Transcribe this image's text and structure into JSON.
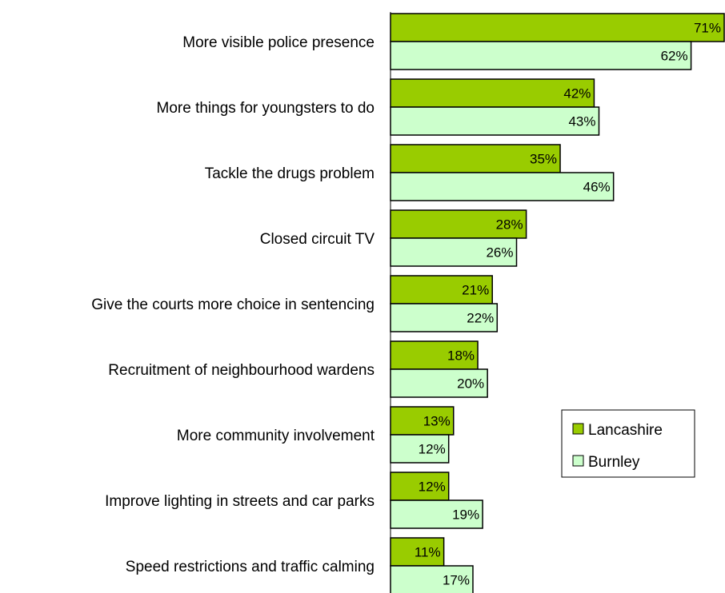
{
  "chart_data": {
    "type": "bar",
    "orientation": "horizontal",
    "categories": [
      "More visible police presence",
      "More things for youngsters to do",
      "Tackle the drugs problem",
      "Closed circuit TV",
      "Give the courts more choice in sentencing",
      "Recruitment of neighbourhood wardens",
      "More community involvement",
      "Improve lighting in streets and car parks",
      "Speed restrictions and traffic calming"
    ],
    "series": [
      {
        "name": "Lancashire",
        "values": [
          71,
          42,
          35,
          28,
          21,
          18,
          13,
          12,
          11
        ],
        "labels": [
          "71%",
          "42%",
          "35%",
          "28%",
          "21%",
          "18%",
          "13%",
          "12%",
          "11%"
        ],
        "color": "#99CC00"
      },
      {
        "name": "Burnley",
        "values": [
          62,
          43,
          46,
          26,
          22,
          20,
          12,
          19,
          17
        ],
        "labels": [
          "62%",
          "43%",
          "46%",
          "26%",
          "22%",
          "20%",
          "12%",
          "19%",
          "17%"
        ],
        "color": "#CCFFCC"
      }
    ],
    "xlim": [
      0,
      69
    ],
    "unit": "%",
    "grid": false,
    "legend": "right"
  }
}
